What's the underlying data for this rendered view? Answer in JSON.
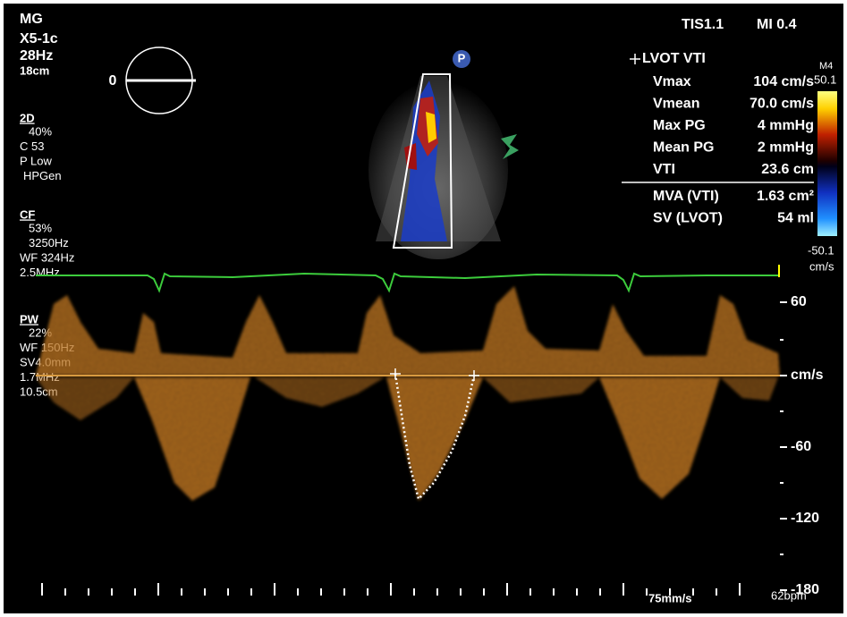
{
  "header": {
    "preset": "MG",
    "probe": "X5-1c",
    "frame_rate": "28Hz",
    "depth": "18cm",
    "angle": "0",
    "tis": "TIS1.1",
    "mi": "MI 0.4"
  },
  "settings": {
    "mode_2d": {
      "title": "2D",
      "lines": [
        "40%",
        "C 53",
        "P Low",
        "HPGen"
      ]
    },
    "mode_cf": {
      "title": "CF",
      "lines": [
        "53%",
        "3250Hz",
        "WF 324Hz",
        "2.5MHz"
      ]
    },
    "mode_pw": {
      "title": "PW",
      "lines": [
        "22%",
        "WF 150Hz",
        "SV4.0mm",
        "1.7MHz",
        "10.5cm"
      ]
    }
  },
  "probe_marker": "P",
  "measurements": {
    "title": "LVOT VTI",
    "rows": [
      [
        "Vmax",
        "104 cm/s"
      ],
      [
        "Vmean",
        "70.0 cm/s"
      ],
      [
        "Max PG",
        "4 mmHg"
      ],
      [
        "Mean PG",
        "2 mmHg"
      ],
      [
        "VTI",
        "23.6 cm"
      ]
    ],
    "derived_rows": [
      [
        "MVA (VTI)",
        "1.63 cm²"
      ],
      [
        "SV (LVOT)",
        "54 ml"
      ]
    ]
  },
  "color_bar": {
    "map": "M4",
    "top": "50.1",
    "bottom": "-50.1",
    "unit": "cm/s"
  },
  "doppler_scale": {
    "labels": [
      60,
      -60,
      -120,
      -180
    ],
    "unit": "cm/s"
  },
  "footer": {
    "sweep_speed": "75mm/s",
    "heart_rate": "62bpm"
  }
}
